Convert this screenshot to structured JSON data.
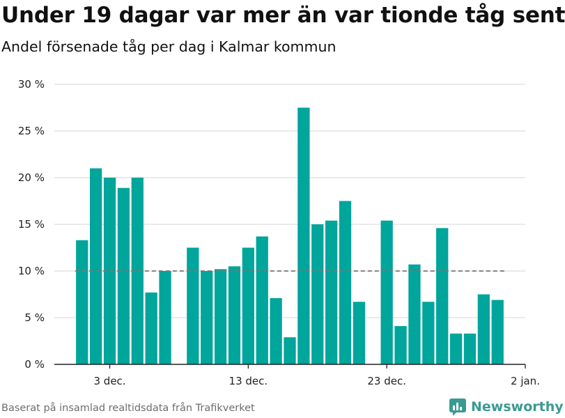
{
  "header": {
    "title": "Under 19 dagar var mer än var tionde tåg sent",
    "subtitle": "Andel försenade tåg per dag i Kalmar kommun"
  },
  "footer": {
    "source": "Baserat på insamlad realtidsdata från Trafikverket",
    "brand": "Newsworthy"
  },
  "colors": {
    "bar": "#00a59b",
    "reference_line": "#777777",
    "grid": "#dddddd",
    "brand": "#3a9a92"
  },
  "chart_data": {
    "type": "bar",
    "title": "Under 19 dagar var mer än var tionde tåg sent",
    "subtitle": "Andel försenade tåg per dag i Kalmar kommun",
    "xlabel": "",
    "ylabel": "",
    "ylim": [
      0,
      30
    ],
    "y_ticks": [
      0,
      5,
      10,
      15,
      20,
      25,
      30
    ],
    "y_tick_labels": [
      "0 %",
      "5 %",
      "10 %",
      "15 %",
      "20 %",
      "25 %",
      "30 %"
    ],
    "x_range": [
      "2019-11-29",
      "2020-01-02"
    ],
    "x_ticks": [
      "2019-12-03",
      "2019-12-13",
      "2019-12-23",
      "2020-01-02"
    ],
    "x_tick_labels": [
      "3 dec.",
      "13 dec.",
      "23 dec.",
      "2 jan."
    ],
    "reference_line": {
      "value": 10,
      "style": "dashed"
    },
    "grid": true,
    "legend": false,
    "dates": [
      "2019-12-01",
      "2019-12-02",
      "2019-12-03",
      "2019-12-04",
      "2019-12-05",
      "2019-12-06",
      "2019-12-07",
      "2019-12-08",
      "2019-12-09",
      "2019-12-10",
      "2019-12-11",
      "2019-12-12",
      "2019-12-13",
      "2019-12-14",
      "2019-12-15",
      "2019-12-16",
      "2019-12-17",
      "2019-12-18",
      "2019-12-19",
      "2019-12-20",
      "2019-12-21",
      "2019-12-22",
      "2019-12-23",
      "2019-12-24",
      "2019-12-25",
      "2019-12-26",
      "2019-12-27",
      "2019-12-28",
      "2019-12-29",
      "2019-12-30",
      "2019-12-31"
    ],
    "values": [
      13.3,
      21.0,
      20.0,
      18.9,
      20.0,
      7.7,
      10.0,
      null,
      12.5,
      10.0,
      10.2,
      10.5,
      12.5,
      13.7,
      7.1,
      2.9,
      27.5,
      15.0,
      15.4,
      17.5,
      6.7,
      null,
      15.4,
      4.1,
      10.7,
      6.7,
      14.6,
      3.3,
      3.3,
      7.5,
      6.9
    ]
  }
}
